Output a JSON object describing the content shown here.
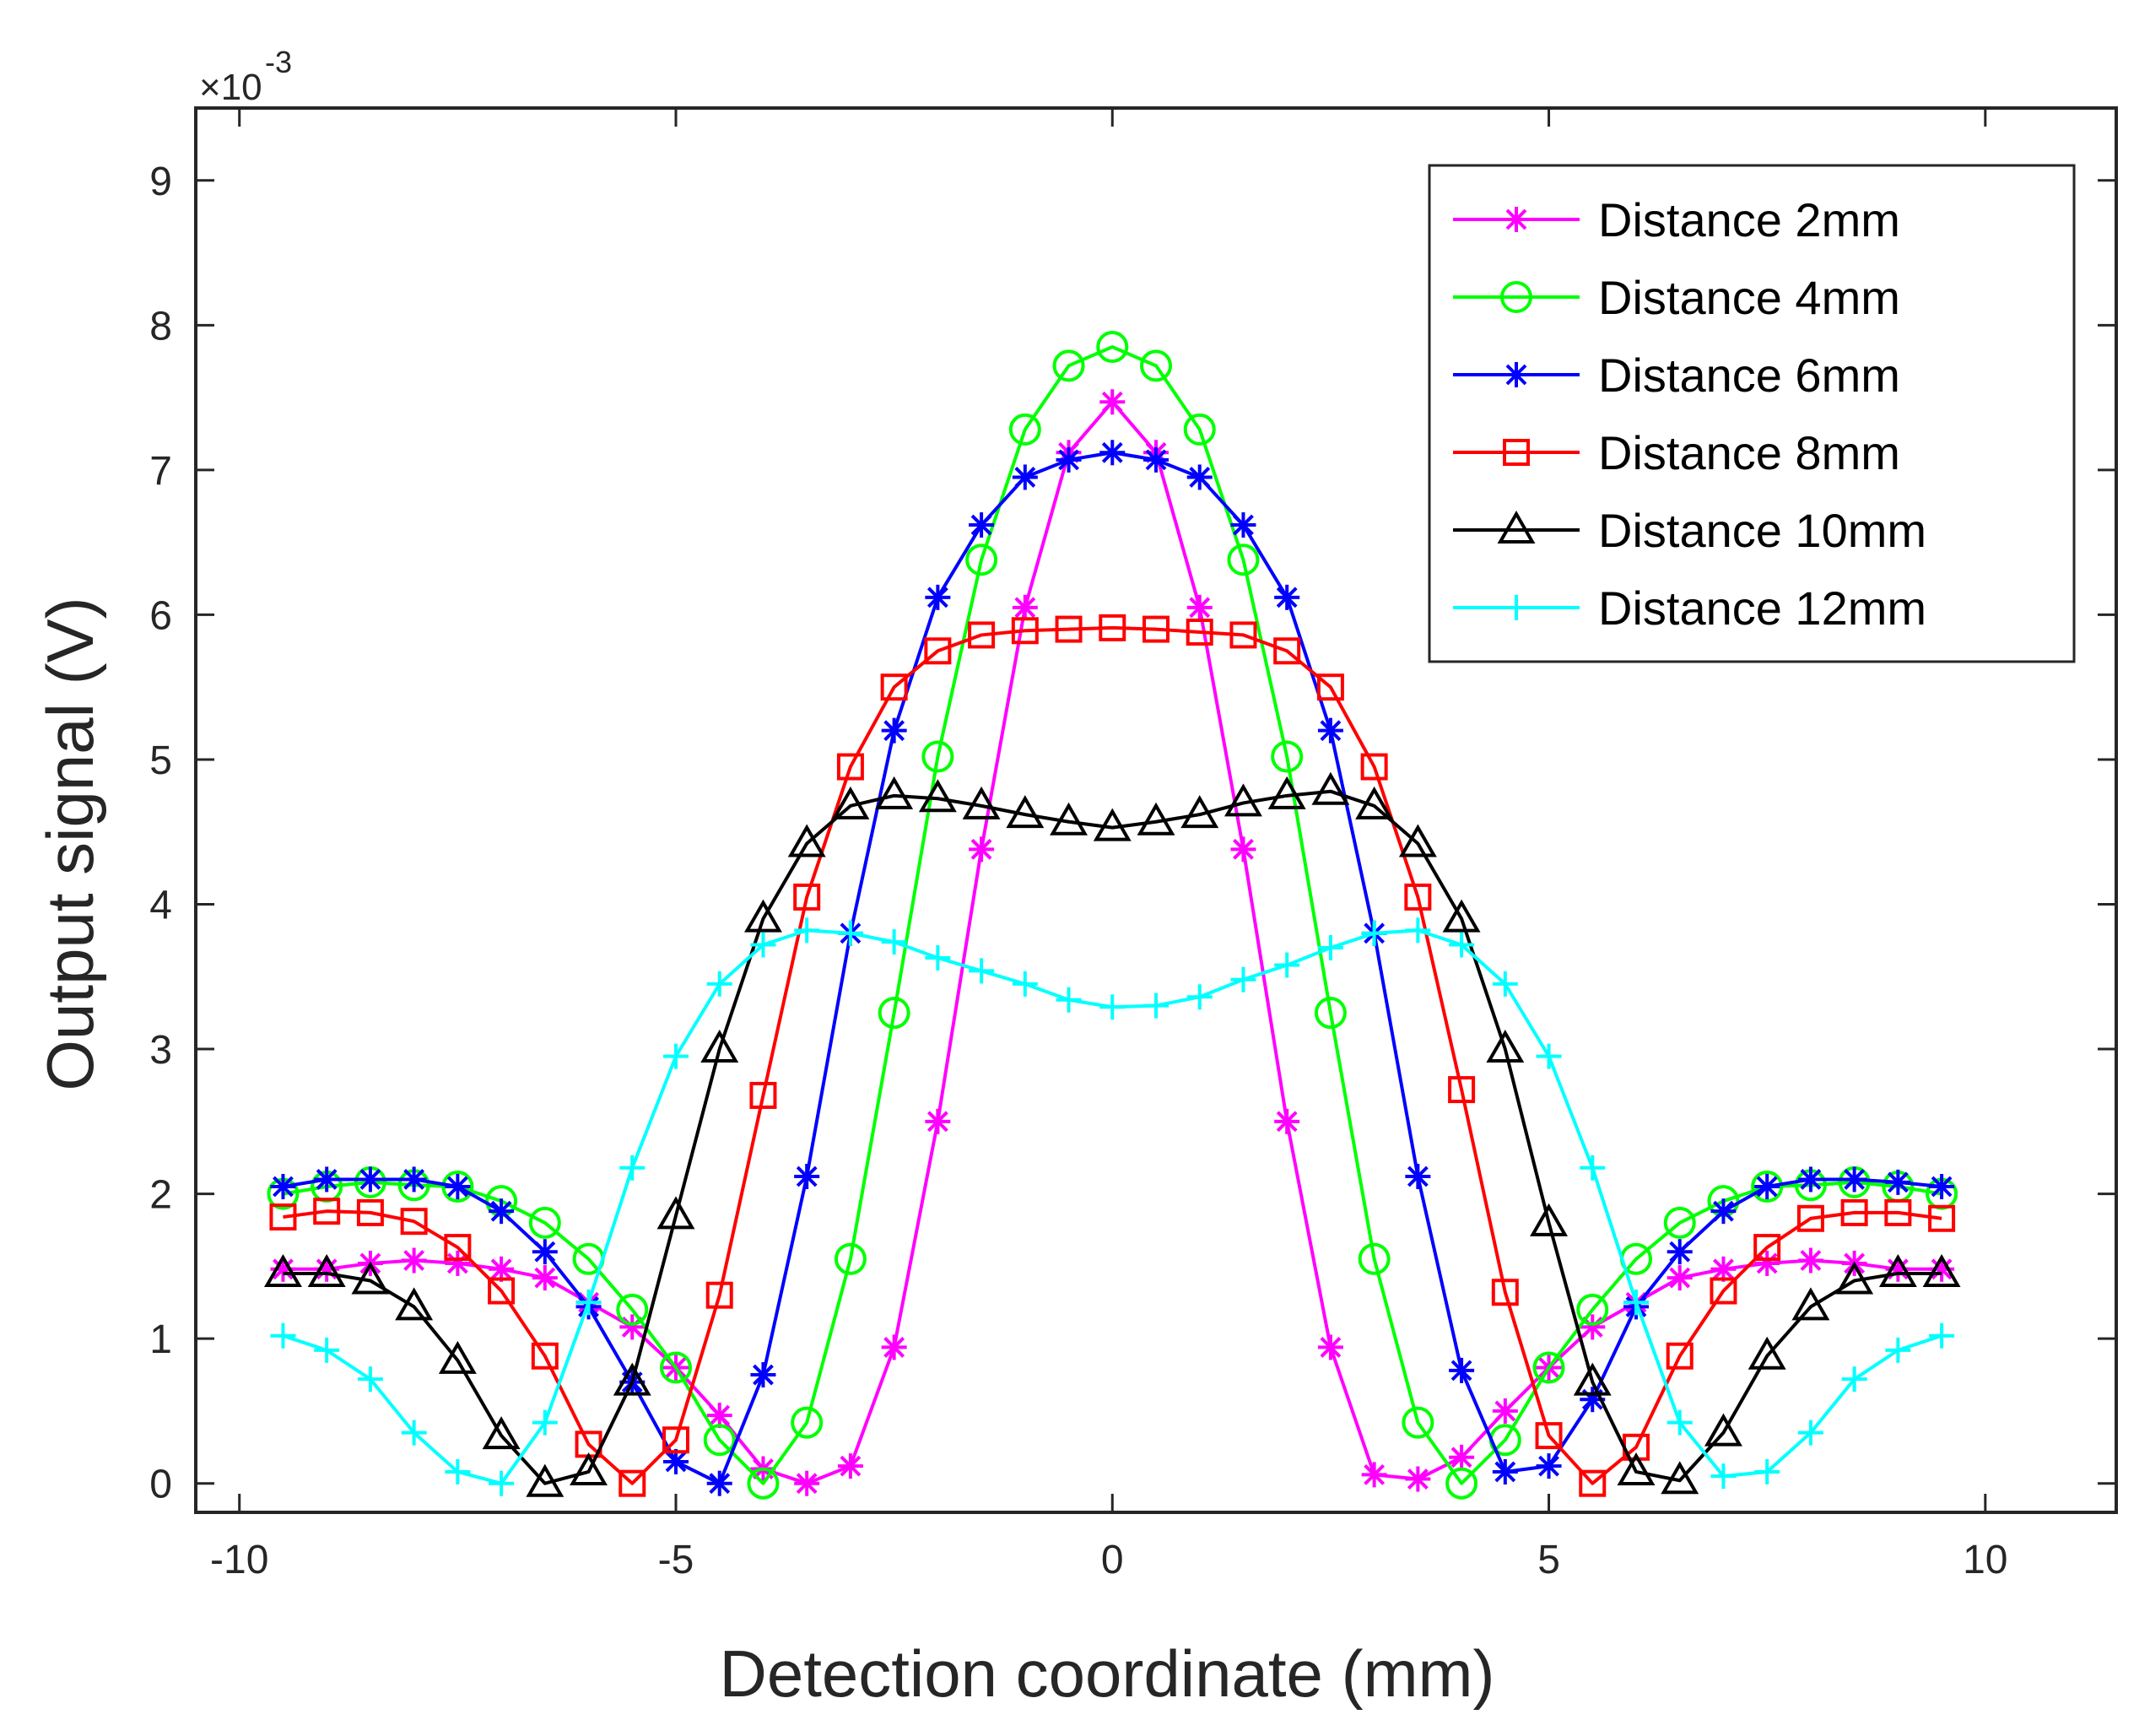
{
  "chart_data": {
    "type": "line",
    "title": "",
    "xlabel": "Detection coordinate (mm)",
    "ylabel": "Output signal (V)",
    "y_exponent": {
      "base": "×10",
      "power": "-3"
    },
    "xlim": [
      -10.5,
      11.5
    ],
    "ylim": [
      -0.2,
      9.5
    ],
    "xticks": [
      -10,
      -5,
      0,
      5,
      10
    ],
    "xtick_labels": [
      "-10",
      "-5",
      "0",
      "5",
      "10"
    ],
    "yticks": [
      0,
      1,
      2,
      3,
      4,
      5,
      6,
      7,
      8,
      9
    ],
    "ytick_labels": [
      "0",
      "1",
      "2",
      "3",
      "4",
      "5",
      "6",
      "7",
      "8",
      "9"
    ],
    "grid": false,
    "legend_position": "top-right",
    "x": [
      -9.5,
      -9.0,
      -8.5,
      -8.0,
      -7.5,
      -7.0,
      -6.5,
      -6.0,
      -5.5,
      -5.0,
      -4.5,
      -4.0,
      -3.5,
      -3.0,
      -2.5,
      -2.0,
      -1.5,
      -1.0,
      -0.5,
      0.0,
      0.5,
      1.0,
      1.5,
      2.0,
      2.5,
      3.0,
      3.5,
      4.0,
      4.5,
      5.0,
      5.5,
      6.0,
      6.5,
      7.0,
      7.5,
      8.0,
      8.5,
      9.0,
      9.5
    ],
    "series": [
      {
        "name": "Distance 2mm",
        "color": "#ff00ff",
        "marker": "asterisk",
        "values": [
          1.48,
          1.48,
          1.52,
          1.54,
          1.52,
          1.48,
          1.42,
          1.25,
          1.08,
          0.8,
          0.47,
          0.1,
          0.0,
          0.12,
          0.94,
          2.5,
          4.38,
          6.05,
          7.12,
          7.47,
          7.12,
          6.05,
          4.38,
          2.5,
          0.94,
          0.06,
          0.03,
          0.18,
          0.5,
          0.8,
          1.08,
          1.25,
          1.42,
          1.48,
          1.52,
          1.54,
          1.52,
          1.48,
          1.48
        ]
      },
      {
        "name": "Distance 4mm",
        "color": "#00ff00",
        "marker": "circle",
        "values": [
          2.0,
          2.05,
          2.08,
          2.06,
          2.05,
          1.95,
          1.8,
          1.55,
          1.2,
          0.8,
          0.3,
          0.0,
          0.42,
          1.55,
          3.25,
          5.02,
          6.38,
          7.28,
          7.72,
          7.85,
          7.72,
          7.28,
          6.38,
          5.02,
          3.25,
          1.55,
          0.42,
          0.0,
          0.3,
          0.8,
          1.2,
          1.55,
          1.8,
          1.95,
          2.05,
          2.06,
          2.08,
          2.05,
          2.0
        ]
      },
      {
        "name": "Distance 6mm",
        "color": "#0000ff",
        "marker": "asterisk",
        "values": [
          2.05,
          2.1,
          2.1,
          2.1,
          2.05,
          1.88,
          1.6,
          1.22,
          0.7,
          0.15,
          0.0,
          0.75,
          2.12,
          3.8,
          5.2,
          6.12,
          6.62,
          6.95,
          7.07,
          7.12,
          7.07,
          6.95,
          6.62,
          6.12,
          5.2,
          3.8,
          2.12,
          0.78,
          0.08,
          0.12,
          0.58,
          1.22,
          1.6,
          1.88,
          2.05,
          2.1,
          2.1,
          2.08,
          2.05
        ]
      },
      {
        "name": "Distance 8mm",
        "color": "#ff0000",
        "marker": "square",
        "values": [
          1.84,
          1.88,
          1.87,
          1.81,
          1.63,
          1.33,
          0.88,
          0.27,
          0.0,
          0.3,
          1.3,
          2.68,
          4.05,
          4.95,
          5.5,
          5.75,
          5.86,
          5.89,
          5.9,
          5.91,
          5.9,
          5.88,
          5.86,
          5.75,
          5.5,
          4.95,
          4.05,
          2.72,
          1.32,
          0.33,
          0.0,
          0.25,
          0.88,
          1.33,
          1.63,
          1.83,
          1.87,
          1.87,
          1.83
        ]
      },
      {
        "name": "Distance 10mm",
        "color": "#000000",
        "marker": "triangle",
        "values": [
          1.45,
          1.45,
          1.4,
          1.22,
          0.85,
          0.33,
          0.0,
          0.08,
          0.7,
          1.85,
          3.0,
          3.9,
          4.42,
          4.68,
          4.75,
          4.73,
          4.68,
          4.62,
          4.57,
          4.53,
          4.57,
          4.62,
          4.7,
          4.75,
          4.78,
          4.68,
          4.42,
          3.9,
          3.0,
          1.8,
          0.7,
          0.08,
          0.02,
          0.35,
          0.88,
          1.22,
          1.4,
          1.45,
          1.45
        ]
      },
      {
        "name": "Distance 12mm",
        "color": "#00ffff",
        "marker": "plus",
        "values": [
          1.02,
          0.92,
          0.72,
          0.35,
          0.08,
          0.0,
          0.42,
          1.25,
          2.18,
          2.95,
          3.45,
          3.72,
          3.82,
          3.8,
          3.74,
          3.63,
          3.54,
          3.45,
          3.34,
          3.29,
          3.3,
          3.36,
          3.48,
          3.58,
          3.7,
          3.8,
          3.82,
          3.72,
          3.45,
          2.95,
          2.18,
          1.25,
          0.42,
          0.05,
          0.08,
          0.35,
          0.72,
          0.92,
          1.02
        ]
      }
    ]
  }
}
